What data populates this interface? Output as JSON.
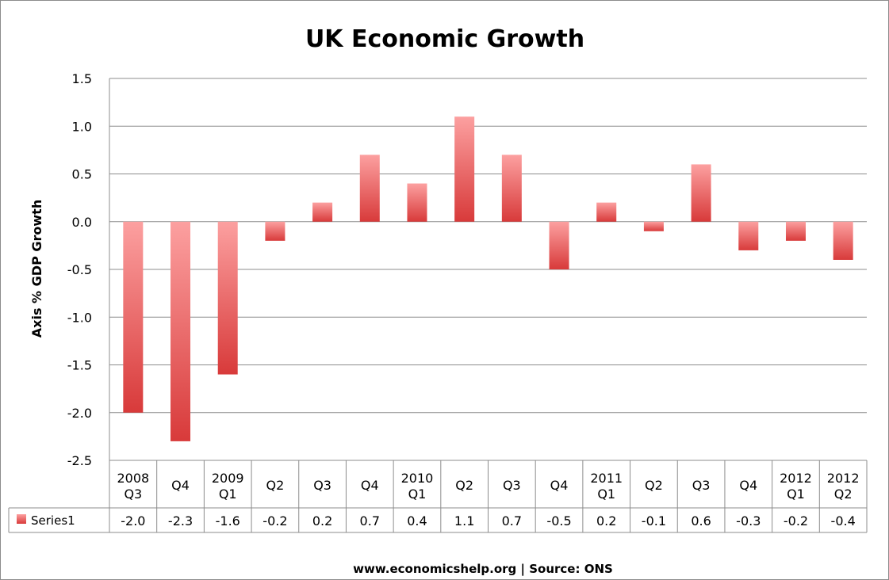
{
  "chart_data": {
    "type": "bar",
    "title": "UK Economic Growth",
    "ylabel": "Axis % GDP Growth",
    "xlabel": "",
    "ylim": [
      -2.5,
      1.5
    ],
    "yticks": [
      "1.5",
      "1.0",
      "0.5",
      "0.0",
      "-0.5",
      "-1.0",
      "-1.5",
      "-2.0",
      "-2.5"
    ],
    "ytick_values": [
      1.5,
      1.0,
      0.5,
      0.0,
      -0.5,
      -1.0,
      -1.5,
      -2.0,
      -2.5
    ],
    "grid": true,
    "categories": [
      [
        "2008",
        "Q3"
      ],
      [
        "Q4"
      ],
      [
        "2009",
        "Q1"
      ],
      [
        "Q2"
      ],
      [
        "Q3"
      ],
      [
        "Q4"
      ],
      [
        "2010",
        "Q1"
      ],
      [
        "Q2"
      ],
      [
        "Q3"
      ],
      [
        "Q4"
      ],
      [
        "2011",
        "Q1"
      ],
      [
        "Q2"
      ],
      [
        "Q3"
      ],
      [
        "Q4"
      ],
      [
        "2012",
        "Q1"
      ],
      [
        "2012",
        "Q2"
      ]
    ],
    "series": [
      {
        "name": "Series1",
        "values": [
          -2.0,
          -2.3,
          -1.6,
          -0.2,
          0.2,
          0.7,
          0.4,
          1.1,
          0.7,
          -0.5,
          0.2,
          -0.1,
          0.6,
          -0.3,
          -0.2,
          -0.4
        ],
        "labels": [
          "-2.0",
          "-2.3",
          "-1.6",
          "-0.2",
          "0.2",
          "0.7",
          "0.4",
          "1.1",
          "0.7",
          "-0.5",
          "0.2",
          "-0.1",
          "0.6",
          "-0.3",
          "-0.2",
          "-0.4"
        ],
        "color_light": "#fca0a0",
        "color_dark": "#d83a3a"
      }
    ],
    "data_table": true,
    "legend_placement": "data-table-row"
  },
  "footer": {
    "source": "www.economicshelp.org | Source: ONS"
  },
  "colors": {
    "grid": "#8c8c8c",
    "frame": "#8c8c8c"
  }
}
